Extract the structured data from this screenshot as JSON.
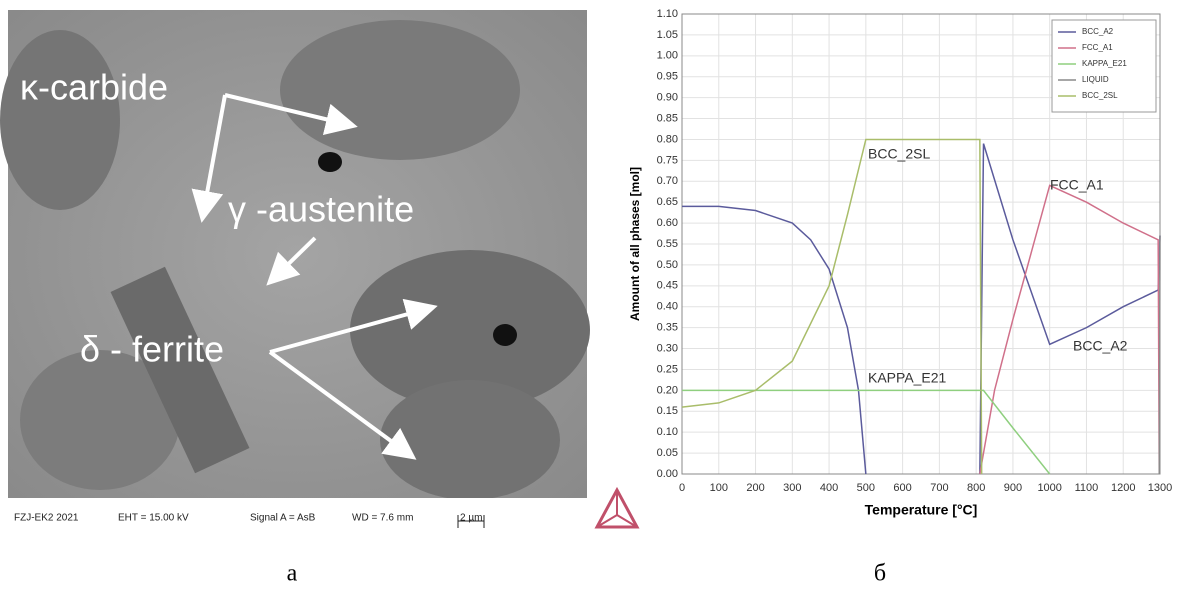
{
  "micrograph": {
    "labels": [
      "κ-carbide",
      "γ -austenite",
      "δ - ferrite"
    ],
    "footer": [
      "FZJ-EK2 2021",
      "EHT = 15.00 kV",
      "Signal A = AsB",
      "WD = 7.6 mm",
      "2 µm"
    ]
  },
  "captions": [
    "а",
    "б"
  ],
  "chart_data": {
    "type": "line",
    "xlabel": "Temperature [°C]",
    "ylabel": "Amount of all phases [mol]",
    "xlim": [
      0,
      1300
    ],
    "ylim": [
      0,
      1.1
    ],
    "xticks": [
      0,
      100,
      200,
      300,
      400,
      500,
      600,
      700,
      800,
      900,
      1000,
      1100,
      1200,
      1300
    ],
    "yticks": [
      {
        "value": 0,
        "label": "0.00"
      },
      {
        "value": 0.05,
        "label": "0.05"
      },
      {
        "value": 0.1,
        "label": "0.10"
      },
      {
        "value": 0.15,
        "label": "0.15"
      },
      {
        "value": 0.2,
        "label": "0.20"
      },
      {
        "value": 0.25,
        "label": "0.25"
      },
      {
        "value": 0.3,
        "label": "0.30"
      },
      {
        "value": 0.35,
        "label": "0.35"
      },
      {
        "value": 0.4,
        "label": "0.40"
      },
      {
        "value": 0.45,
        "label": "0.45"
      },
      {
        "value": 0.5,
        "label": "0.50"
      },
      {
        "value": 0.55,
        "label": "0.55"
      },
      {
        "value": 0.6,
        "label": "0.60"
      },
      {
        "value": 0.65,
        "label": "0.65"
      },
      {
        "value": 0.7,
        "label": "0.70"
      },
      {
        "value": 0.75,
        "label": "0.75"
      },
      {
        "value": 0.8,
        "label": "0.80"
      },
      {
        "value": 0.85,
        "label": "0.85"
      },
      {
        "value": 0.9,
        "label": "0.90"
      },
      {
        "value": 0.95,
        "label": "0.95"
      },
      {
        "value": 1.0,
        "label": "1.00"
      },
      {
        "value": 1.05,
        "label": "1.05"
      },
      {
        "value": 1.1,
        "label": "1.10"
      }
    ],
    "grid": true,
    "legend": "upper right",
    "series": [
      {
        "name": "BCC_A2",
        "color": "#5b5b9c",
        "x": [
          0,
          100,
          200,
          300,
          350,
          400,
          450,
          480,
          500,
          505,
          810,
          820,
          900,
          1000,
          1100,
          1200,
          1295,
          1300
        ],
        "values": [
          0.64,
          0.64,
          0.63,
          0.6,
          0.56,
          0.49,
          0.35,
          0.2,
          0,
          null,
          0,
          0.79,
          0.56,
          0.31,
          0.35,
          0.4,
          0.44,
          0.57
        ]
      },
      {
        "name": "FCC_A1",
        "color": "#d0708a",
        "x": [
          810,
          850,
          900,
          950,
          1000,
          1100,
          1200,
          1295,
          1298
        ],
        "values": [
          0,
          0.2,
          0.37,
          0.53,
          0.69,
          0.65,
          0.6,
          0.56,
          0
        ]
      },
      {
        "name": "KAPPA_E21",
        "color": "#8fcf7f",
        "x": [
          0,
          200,
          400,
          600,
          800,
          820,
          900,
          1000
        ],
        "values": [
          0.2,
          0.2,
          0.2,
          0.2,
          0.2,
          0.2,
          0.11,
          0
        ]
      },
      {
        "name": "LIQUID",
        "color": "#8a8a8a",
        "x": [
          1298,
          1300
        ],
        "values": [
          0,
          0.57
        ]
      },
      {
        "name": "BCC_2SL",
        "color": "#a9bd6a",
        "x": [
          0,
          100,
          200,
          300,
          400,
          450,
          500,
          800,
          810,
          815
        ],
        "values": [
          0.16,
          0.17,
          0.2,
          0.27,
          0.45,
          0.62,
          0.8,
          0.8,
          0.8,
          0
        ]
      }
    ],
    "annotations": [
      "BCC_2SL",
      "FCC_A1",
      "BCC_A2",
      "KAPPA_E21"
    ]
  }
}
